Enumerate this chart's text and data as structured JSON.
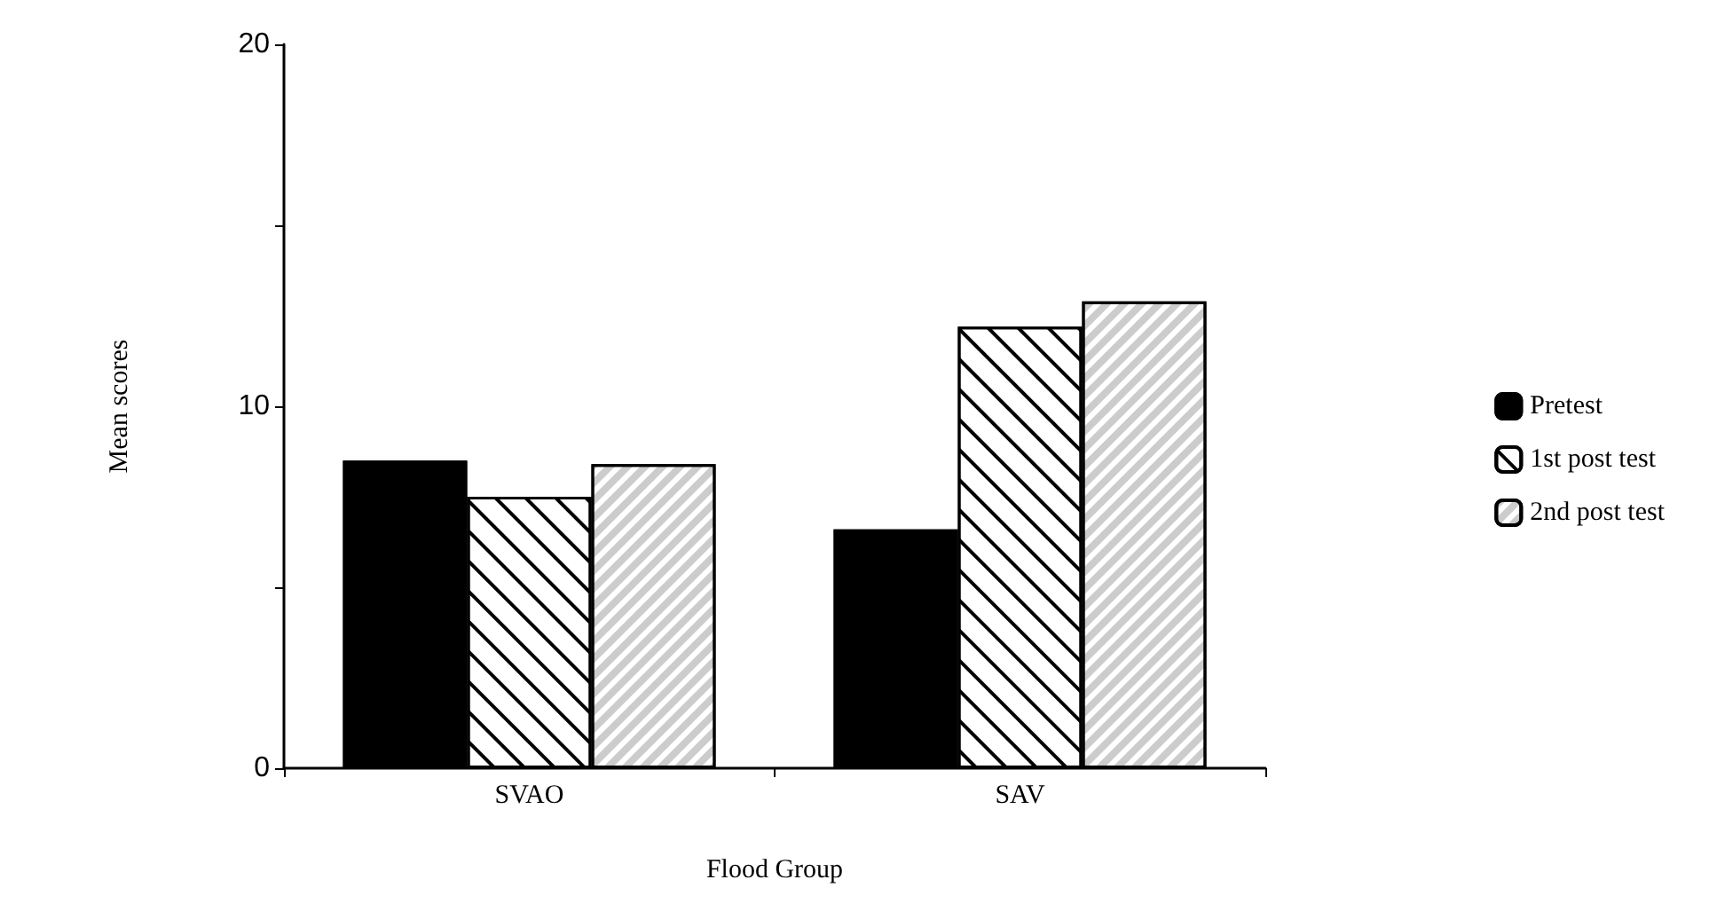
{
  "chart_data": {
    "type": "bar",
    "xlabel": "Flood Group",
    "ylabel": "Mean scores",
    "categories": [
      "SVAO",
      "SAV"
    ],
    "series": [
      {
        "name": "Pretest",
        "color": "#000000",
        "values": [
          8.5,
          6.6
        ]
      },
      {
        "name": "1st post test",
        "color": "#ffffff",
        "values": [
          7.5,
          12.2
        ]
      },
      {
        "name": "2nd post test",
        "color": "#ffffff",
        "values": [
          8.4,
          12.9
        ]
      }
    ],
    "ylim": [
      0,
      20
    ],
    "yticks": [
      0,
      {
        "value": 5,
        "label": null
      },
      10,
      {
        "value": 15,
        "label": null
      },
      20
    ],
    "grid": false,
    "legend": "right"
  }
}
